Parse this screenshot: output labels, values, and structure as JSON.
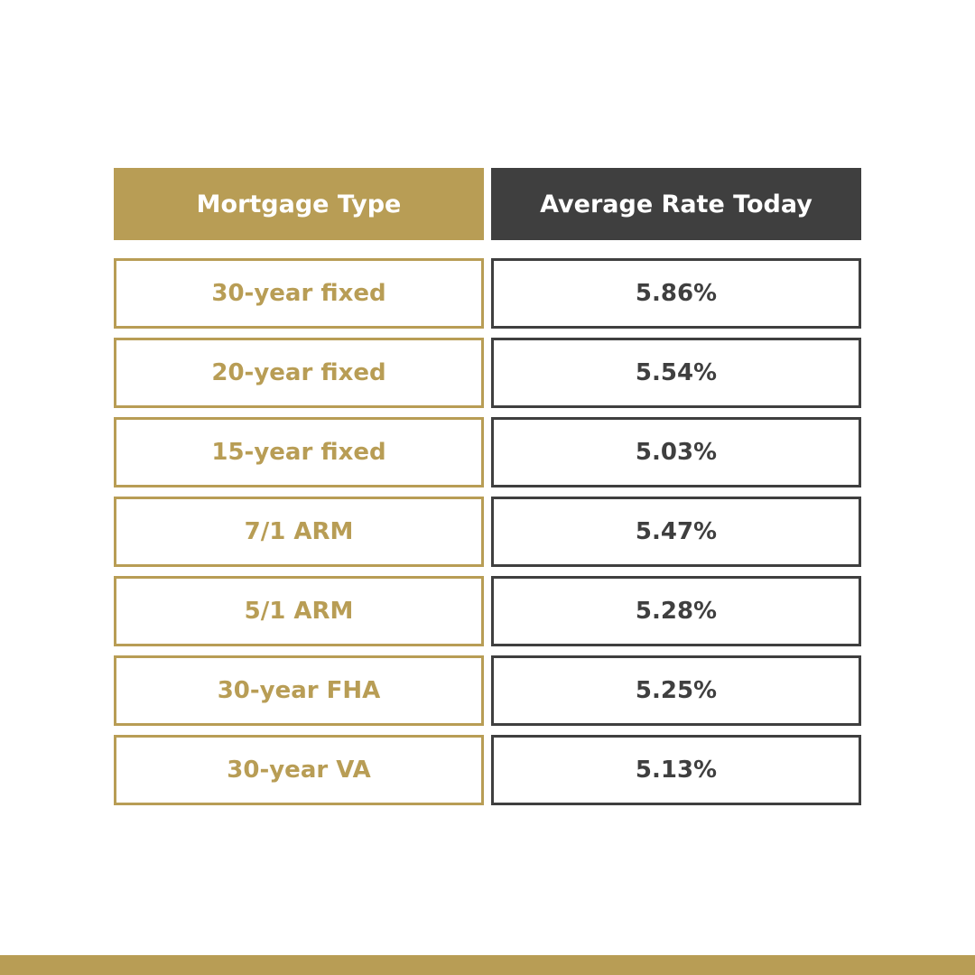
{
  "colors": {
    "gold": "#b89d55",
    "charcoal": "#3f3f3f",
    "background": "#ffffff"
  },
  "chart_data": {
    "type": "table",
    "columns": [
      "Mortgage Type",
      "Average Rate Today"
    ],
    "rows": [
      {
        "type": "30-year fixed",
        "rate": "5.86%"
      },
      {
        "type": "20-year fixed",
        "rate": "5.54%"
      },
      {
        "type": "15-year fixed",
        "rate": "5.03%"
      },
      {
        "type": "7/1 ARM",
        "rate": "5.47%"
      },
      {
        "type": "5/1 ARM",
        "rate": "5.28%"
      },
      {
        "type": "30-year FHA",
        "rate": "5.25%"
      },
      {
        "type": "30-year VA",
        "rate": "5.13%"
      }
    ]
  }
}
